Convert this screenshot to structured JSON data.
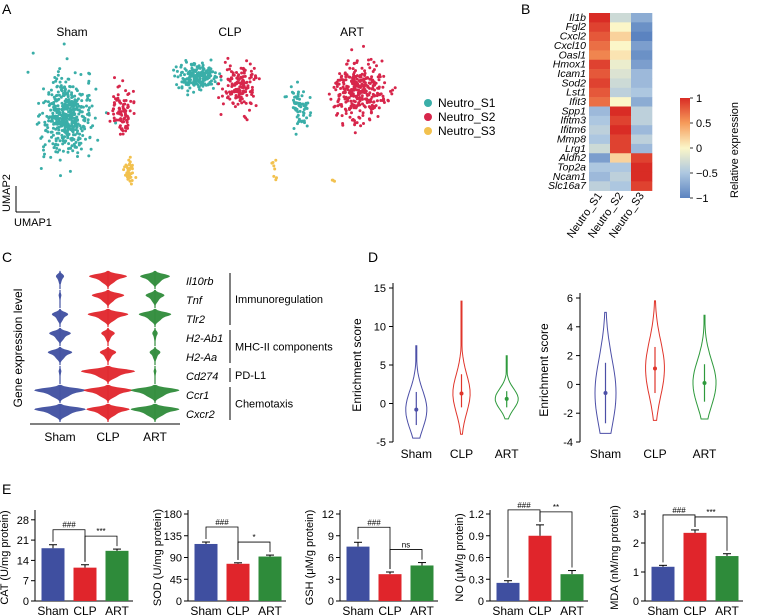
{
  "figure": {
    "panel_labels": [
      "A",
      "B",
      "C",
      "D",
      "E"
    ]
  },
  "chart_data": [
    {
      "panel": "A",
      "type": "scatter",
      "subplot_titles": [
        "Sham",
        "CLP",
        "ART"
      ],
      "xlabel": "UMAP1",
      "ylabel": "UMAP2",
      "legend": [
        {
          "name": "Neutro_S1",
          "color": "#3aaea8"
        },
        {
          "name": "Neutro_S2",
          "color": "#d7264b"
        },
        {
          "name": "Neutro_S3",
          "color": "#f2c14e"
        }
      ],
      "clusters": [
        {
          "subplot": "Sham",
          "name": "Neutro_S1",
          "n": 480,
          "center": [
            0.3,
            0.48
          ],
          "spread": [
            0.16,
            0.2
          ]
        },
        {
          "subplot": "Sham",
          "name": "Neutro_S2",
          "n": 90,
          "center": [
            0.72,
            0.46
          ],
          "spread": [
            0.07,
            0.15
          ]
        },
        {
          "subplot": "Sham",
          "name": "Neutro_S3",
          "n": 45,
          "center": [
            0.78,
            0.85
          ],
          "spread": [
            0.03,
            0.07
          ]
        },
        {
          "subplot": "CLP",
          "name": "Neutro_S1",
          "n": 190,
          "center": [
            0.22,
            0.22
          ],
          "spread": [
            0.13,
            0.07
          ]
        },
        {
          "subplot": "CLP",
          "name": "Neutro_S2",
          "n": 150,
          "center": [
            0.58,
            0.28
          ],
          "spread": [
            0.13,
            0.13
          ]
        },
        {
          "subplot": "CLP",
          "name": "Neutro_S3",
          "n": 8,
          "center": [
            0.88,
            0.82
          ],
          "spread": [
            0.03,
            0.08
          ]
        },
        {
          "subplot": "ART",
          "name": "Neutro_S1",
          "n": 70,
          "center": [
            0.12,
            0.42
          ],
          "spread": [
            0.07,
            0.1
          ]
        },
        {
          "subplot": "ART",
          "name": "Neutro_S2",
          "n": 330,
          "center": [
            0.62,
            0.32
          ],
          "spread": [
            0.17,
            0.16
          ]
        },
        {
          "subplot": "ART",
          "name": "Neutro_S3",
          "n": 3,
          "center": [
            0.4,
            0.92
          ],
          "spread": [
            0.02,
            0.03
          ]
        }
      ]
    },
    {
      "panel": "B",
      "type": "heatmap",
      "rows": [
        "Il1b",
        "Fgl2",
        "Cxcl2",
        "Cxcl10",
        "Oasl1",
        "Hmox1",
        "Icam1",
        "Sod2",
        "Lst1",
        "Ifit3",
        "Spp1",
        "Ifitm3",
        "Ifitm6",
        "Mmp8",
        "Lrg1",
        "Aldh2",
        "Top2a",
        "Ncam1",
        "Slc16a7"
      ],
      "columns": [
        "Neutro_S1",
        "Neutro_S2",
        "Neutro_S3"
      ],
      "values": [
        [
          1.0,
          -0.3,
          -0.7
        ],
        [
          0.9,
          0.0,
          -0.9
        ],
        [
          0.8,
          0.2,
          -1.0
        ],
        [
          0.7,
          0.0,
          -0.8
        ],
        [
          0.6,
          0.1,
          -0.9
        ],
        [
          0.9,
          -0.1,
          -0.8
        ],
        [
          0.8,
          -0.2,
          -0.6
        ],
        [
          0.9,
          -0.3,
          -0.6
        ],
        [
          0.8,
          -0.4,
          -0.5
        ],
        [
          0.7,
          0.0,
          -0.7
        ],
        [
          -0.6,
          1.0,
          -0.4
        ],
        [
          -0.5,
          0.9,
          -0.4
        ],
        [
          -0.4,
          1.0,
          -0.6
        ],
        [
          -0.5,
          0.9,
          -0.4
        ],
        [
          -0.3,
          0.9,
          -0.6
        ],
        [
          -0.8,
          0.2,
          0.9
        ],
        [
          -0.5,
          -0.5,
          1.0
        ],
        [
          -0.6,
          -0.4,
          1.0
        ],
        [
          -0.4,
          -0.5,
          0.9
        ]
      ],
      "colorbar": {
        "label": "Relative expression",
        "ticks": [
          1,
          0.5,
          0,
          -0.5,
          -1
        ],
        "tick_labels": [
          "1",
          "0.5",
          "0",
          "−0.5",
          "−1"
        ],
        "range": [
          -1,
          1
        ]
      }
    },
    {
      "panel": "C",
      "type": "stacked-violin",
      "ylabel": "Gene expression level",
      "groups": [
        "Sham",
        "CLP",
        "ART"
      ],
      "group_colors": [
        "#3f4fa0",
        "#e0252b",
        "#2e8b3a"
      ],
      "genes": [
        "Il10rb",
        "Tnf",
        "Tlr2",
        "H2-Ab1",
        "H2-Aa",
        "Cd274",
        "Ccr1",
        "Cxcr2"
      ],
      "widths": [
        [
          0.15,
          0.7,
          0.55
        ],
        [
          0.05,
          0.6,
          0.35
        ],
        [
          0.3,
          0.75,
          0.6
        ],
        [
          0.4,
          0.25,
          0.1
        ],
        [
          0.45,
          0.3,
          0.2
        ],
        [
          0.05,
          1.0,
          0.05
        ],
        [
          0.95,
          0.9,
          0.9
        ],
        [
          0.95,
          0.8,
          0.9
        ]
      ],
      "categories": [
        {
          "label": "Immunoregulation",
          "genes": [
            "Il10rb",
            "Tnf",
            "Tlr2"
          ]
        },
        {
          "label": "MHC-II components",
          "genes": [
            "H2-Ab1",
            "H2-Aa"
          ]
        },
        {
          "label": "PD-L1",
          "genes": [
            "Cd274"
          ]
        },
        {
          "label": "Chemotaxis",
          "genes": [
            "Ccr1",
            "Cxcr2"
          ]
        }
      ]
    },
    {
      "panel": "D",
      "type": "violin",
      "subplots": [
        {
          "ylabel": "Enrichment score",
          "ylim": [
            -5,
            15
          ],
          "ticks": [
            -5,
            0,
            5,
            10,
            15
          ],
          "groups": [
            "Sham",
            "CLP",
            "ART"
          ],
          "distributions": [
            {
              "min": -4.5,
              "max": 7.5,
              "median": -0.8,
              "q1": -2.8,
              "q3": 1.5,
              "width": 0.55
            },
            {
              "min": -4.0,
              "max": 13.3,
              "median": 1.3,
              "q1": -0.5,
              "q3": 3.8,
              "width": 0.45
            },
            {
              "min": -2.0,
              "max": 6.2,
              "median": 0.6,
              "q1": -0.5,
              "q3": 1.6,
              "width": 0.6
            }
          ]
        },
        {
          "ylabel": "Enrichment score",
          "ylim": [
            -4,
            6
          ],
          "ticks": [
            -4,
            -2,
            0,
            2,
            4,
            6
          ],
          "groups": [
            "Sham",
            "CLP",
            "ART"
          ],
          "distributions": [
            {
              "min": -3.4,
              "max": 5.0,
              "median": -0.6,
              "q1": -2.7,
              "q3": 1.5,
              "width": 0.5
            },
            {
              "min": -2.5,
              "max": 5.8,
              "median": 1.1,
              "q1": -0.6,
              "q3": 2.6,
              "width": 0.45
            },
            {
              "min": -2.4,
              "max": 4.8,
              "median": 0.1,
              "q1": -1.2,
              "q3": 1.4,
              "width": 0.55
            }
          ]
        }
      ]
    },
    {
      "panel": "E",
      "type": "bar",
      "categories": [
        "Sham",
        "CLP",
        "ART"
      ],
      "colors": [
        "#3f4fa0",
        "#e0252b",
        "#2e8b3a"
      ],
      "plots": [
        {
          "ylabel": "CAT (U/mg protein)",
          "ylim": [
            0,
            30
          ],
          "ticks": [
            0,
            7,
            14,
            21,
            28
          ],
          "values": [
            18.2,
            11.5,
            17.3
          ],
          "errors": [
            1.2,
            1.0,
            0.6
          ],
          "significance": [
            {
              "pair": [
                0,
                1
              ],
              "label": "###"
            },
            {
              "pair": [
                1,
                2
              ],
              "label": "***"
            }
          ]
        },
        {
          "ylabel": "SOD (U/mg protein)",
          "ylim": [
            0,
            180
          ],
          "ticks": [
            0,
            45,
            90,
            135,
            180
          ],
          "values": [
            118,
            77,
            92
          ],
          "errors": [
            4,
            2,
            3
          ],
          "significance": [
            {
              "pair": [
                0,
                1
              ],
              "label": "###"
            },
            {
              "pair": [
                1,
                2
              ],
              "label": "*"
            }
          ]
        },
        {
          "ylabel": "GSH (μM/g protein)",
          "ylim": [
            0,
            12
          ],
          "ticks": [
            0,
            3,
            6,
            9,
            12
          ],
          "values": [
            7.5,
            3.7,
            4.9
          ],
          "errors": [
            0.6,
            0.3,
            0.4
          ],
          "significance": [
            {
              "pair": [
                0,
                1
              ],
              "label": "###"
            },
            {
              "pair": [
                1,
                2
              ],
              "label": "ns"
            }
          ]
        },
        {
          "ylabel": "NO (μM/g protein)",
          "ylim": [
            0,
            1.2
          ],
          "ticks": [
            0,
            0.3,
            0.6,
            0.9,
            1.2
          ],
          "tick_labels": [
            "0",
            "0.3",
            "0.6",
            "0.9",
            "1.2"
          ],
          "values": [
            0.25,
            0.9,
            0.37
          ],
          "errors": [
            0.03,
            0.15,
            0.05
          ],
          "significance": [
            {
              "pair": [
                0,
                1
              ],
              "label": "###"
            },
            {
              "pair": [
                1,
                2
              ],
              "label": "**"
            }
          ]
        },
        {
          "ylabel": "MDA (nM/mg protein)",
          "ylim": [
            0,
            3
          ],
          "ticks": [
            0,
            1,
            2,
            3
          ],
          "values": [
            1.18,
            2.35,
            1.55
          ],
          "errors": [
            0.05,
            0.1,
            0.08
          ],
          "significance": [
            {
              "pair": [
                0,
                1
              ],
              "label": "###"
            },
            {
              "pair": [
                1,
                2
              ],
              "label": "***"
            }
          ]
        }
      ]
    }
  ]
}
